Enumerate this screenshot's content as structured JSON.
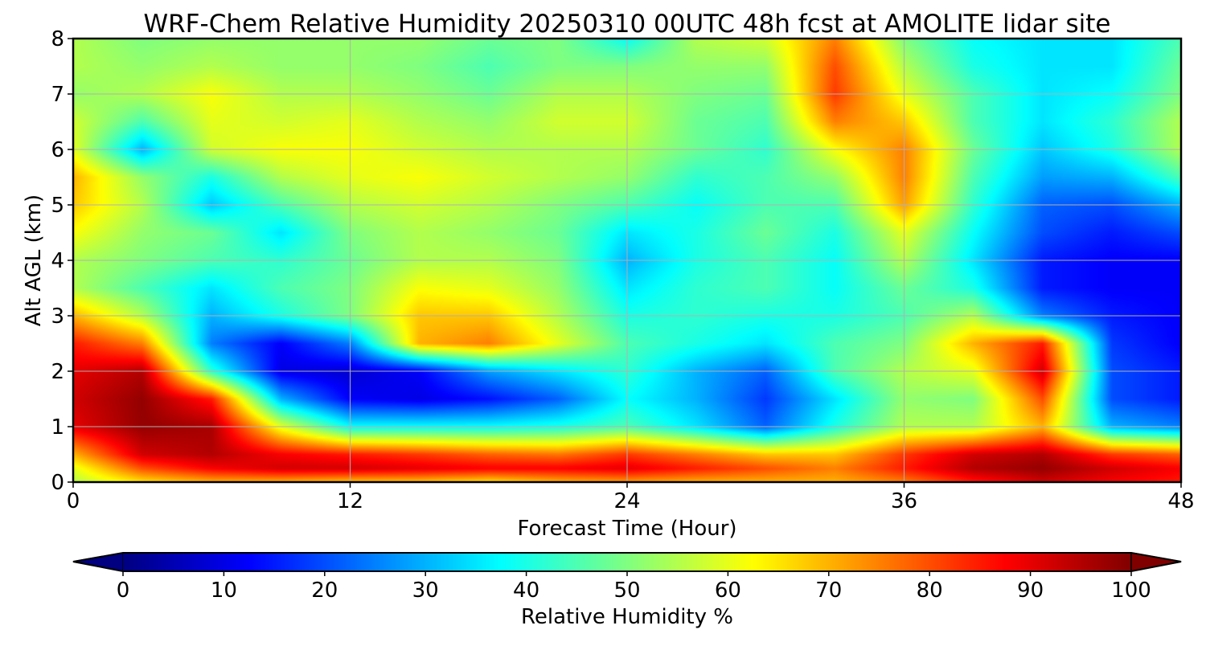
{
  "chart_data": {
    "type": "heatmap",
    "title": "WRF-Chem Relative Humidity 20250310 00UTC 48h fcst at AMOLITE lidar site",
    "xlabel": "Forecast Time (Hour)",
    "ylabel": "Alt AGL (km)",
    "xlim": [
      0,
      48
    ],
    "ylim": [
      0,
      8
    ],
    "xticks": [
      "0",
      "12",
      "24",
      "36",
      "48"
    ],
    "yticks": [
      "0",
      "1",
      "2",
      "3",
      "4",
      "5",
      "6",
      "7",
      "8"
    ],
    "grid": true,
    "colormap": "jet",
    "colorbar": {
      "label": "Relative Humidity %",
      "min": 0,
      "max": 100,
      "ticks": [
        "0",
        "10",
        "20",
        "30",
        "40",
        "50",
        "60",
        "70",
        "80",
        "90",
        "100"
      ],
      "extend": "both",
      "orientation": "horizontal"
    },
    "x": [
      0,
      3,
      6,
      9,
      12,
      15,
      18,
      21,
      24,
      27,
      30,
      33,
      36,
      39,
      42,
      45,
      48
    ],
    "y": [
      0,
      0.25,
      0.5,
      1,
      1.5,
      2,
      2.5,
      3,
      3.5,
      4,
      4.5,
      5,
      5.5,
      6,
      6.5,
      7,
      7.5,
      8
    ],
    "z": [
      [
        55,
        65,
        70,
        70,
        68,
        68,
        65,
        70,
        72,
        70,
        70,
        70,
        75,
        85,
        92,
        88,
        85
      ],
      [
        60,
        80,
        88,
        92,
        92,
        90,
        88,
        88,
        90,
        85,
        80,
        75,
        85,
        95,
        98,
        92,
        88
      ],
      [
        70,
        92,
        95,
        88,
        85,
        82,
        78,
        76,
        82,
        75,
        68,
        68,
        82,
        92,
        95,
        82,
        78
      ],
      [
        90,
        98,
        96,
        60,
        38,
        38,
        38,
        40,
        45,
        35,
        22,
        40,
        55,
        55,
        70,
        30,
        25
      ],
      [
        92,
        98,
        85,
        30,
        12,
        10,
        14,
        22,
        38,
        30,
        18,
        35,
        52,
        50,
        80,
        20,
        15
      ],
      [
        90,
        95,
        42,
        10,
        8,
        12,
        28,
        35,
        42,
        30,
        22,
        45,
        55,
        60,
        92,
        20,
        15
      ],
      [
        85,
        75,
        25,
        12,
        25,
        70,
        75,
        60,
        45,
        40,
        35,
        45,
        50,
        70,
        85,
        18,
        12
      ],
      [
        70,
        55,
        30,
        40,
        50,
        68,
        68,
        55,
        40,
        42,
        40,
        40,
        45,
        55,
        25,
        15,
        12
      ],
      [
        55,
        45,
        35,
        45,
        50,
        62,
        60,
        52,
        35,
        42,
        45,
        38,
        48,
        40,
        15,
        12,
        12
      ],
      [
        55,
        50,
        45,
        42,
        48,
        55,
        55,
        50,
        30,
        40,
        45,
        38,
        55,
        35,
        15,
        12,
        12
      ],
      [
        62,
        52,
        48,
        35,
        50,
        55,
        52,
        48,
        35,
        40,
        48,
        40,
        60,
        38,
        20,
        15,
        20
      ],
      [
        68,
        55,
        32,
        45,
        55,
        58,
        55,
        50,
        45,
        38,
        45,
        45,
        72,
        42,
        22,
        20,
        30
      ],
      [
        70,
        52,
        40,
        55,
        60,
        62,
        58,
        55,
        52,
        42,
        45,
        52,
        75,
        45,
        28,
        30,
        45
      ],
      [
        60,
        30,
        58,
        62,
        62,
        58,
        55,
        55,
        55,
        48,
        42,
        62,
        75,
        48,
        32,
        40,
        55
      ],
      [
        58,
        45,
        60,
        58,
        60,
        55,
        52,
        58,
        58,
        48,
        45,
        75,
        68,
        45,
        35,
        42,
        55
      ],
      [
        52,
        55,
        62,
        55,
        55,
        52,
        48,
        55,
        55,
        50,
        48,
        82,
        60,
        45,
        35,
        38,
        50
      ],
      [
        55,
        52,
        55,
        52,
        52,
        50,
        45,
        50,
        50,
        52,
        52,
        80,
        55,
        40,
        35,
        35,
        48
      ],
      [
        55,
        50,
        52,
        52,
        52,
        52,
        48,
        50,
        38,
        55,
        58,
        75,
        50,
        38,
        35,
        35,
        45
      ]
    ]
  }
}
